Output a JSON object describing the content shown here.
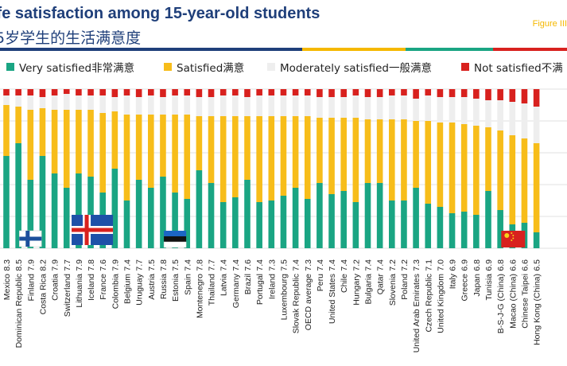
{
  "header": {
    "title_en": "ife satisfaction among 15-year-old students",
    "title_zh": "5岁学生的生活满意度",
    "figure_label": "Figure III"
  },
  "colors": {
    "very_satisfied": "#1aa583",
    "satisfied": "#f7bd1a",
    "moderately_satisfied": "#eeeeee",
    "not_satisfied": "#d8211e",
    "title": "#1f3f7a",
    "stripe_blue": "#1f3f7a",
    "stripe_yellow": "#f5b800",
    "stripe_green": "#1aa583",
    "stripe_red": "#d8211e"
  },
  "legend": [
    {
      "label": "Very satisfied非常满意",
      "color": "#1aa583"
    },
    {
      "label": "Satisfied满意",
      "color": "#f7bd1a"
    },
    {
      "label": "Moderately satisfied一般满意",
      "color": "#eeeeee"
    },
    {
      "label": "Not satisfied不满",
      "color": "#d8211e"
    }
  ],
  "chart_data": {
    "type": "bar",
    "stacked": true,
    "ylim": [
      0,
      100
    ],
    "grid": true,
    "legend_position": "top",
    "categories": [
      "Mexico",
      "Dominican Republic",
      "Finland",
      "Costa Rica",
      "Croatia",
      "Switzerland",
      "Lithuania",
      "Iceland",
      "France",
      "Colombia",
      "Belgium",
      "Uruguay",
      "Austria",
      "Russia",
      "Estonia",
      "Spain",
      "Montenegro",
      "Thailand",
      "Latvia",
      "Germany",
      "Brazil",
      "Portugal",
      "Ireland",
      "Luxembourg",
      "Slovak Republic",
      "OECD average",
      "Peru",
      "United States",
      "Chile",
      "Hungary",
      "Bulgaria",
      "Qatar",
      "Slovenia",
      "Poland",
      "United Arab Emirates",
      "Czech Republic",
      "United Kingdom",
      "Italy",
      "Greece",
      "Japan",
      "Tunisia",
      "B-S-J-G (China)",
      "Macao (China)",
      "Chinese Taipei",
      "Hong Kong (China)"
    ],
    "mean_scores": [
      "8.3",
      "8.5",
      "7.9",
      "8.2",
      "7.9",
      "7.7",
      "7.9",
      "7.8",
      "7.6",
      "7.9",
      "7.4",
      "7.7",
      "7.5",
      "7.8",
      "7.5",
      "7.4",
      "7.8",
      "7.7",
      "7.4",
      "7.4",
      "7.6",
      "7.4",
      "7.3",
      "7.5",
      "7.4",
      "7.3",
      "7.4",
      "7.4",
      "7.4",
      "7.2",
      "7.4",
      "7.4",
      "7.2",
      "7.2",
      "7.3",
      "7.1",
      "7.0",
      "6.9",
      "6.9",
      "6.8",
      "6.9",
      "6.8",
      "6.6",
      "6.6",
      "6.5"
    ],
    "series": [
      {
        "name": "Very satisfied非常满意",
        "values": [
          58,
          66,
          43,
          58,
          47,
          38,
          47,
          45,
          35,
          50,
          30,
          43,
          38,
          45,
          35,
          31,
          49,
          41,
          29,
          32,
          43,
          29,
          30,
          33,
          38,
          31,
          41,
          34,
          36,
          29,
          41,
          41,
          30,
          30,
          38,
          28,
          26,
          22,
          23,
          21,
          36,
          24,
          15,
          16,
          10
        ]
      },
      {
        "name": "Satisfied满意",
        "values": [
          32,
          23,
          44,
          30,
          40,
          49,
          40,
          42,
          50,
          36,
          54,
          41,
          46,
          39,
          49,
          53,
          34,
          42,
          54,
          51,
          40,
          54,
          53,
          50,
          45,
          52,
          41,
          48,
          46,
          53,
          40,
          40,
          51,
          51,
          42,
          52,
          53,
          57,
          55,
          56,
          40,
          50,
          56,
          53,
          56
        ]
      },
      {
        "name": "Moderately satisfied一般满意",
        "values": [
          6,
          7,
          9,
          7,
          9,
          10,
          9,
          9,
          11,
          9,
          12,
          11,
          12,
          11,
          12,
          12,
          12,
          12,
          13,
          13,
          12,
          13,
          13,
          13,
          13,
          13,
          13,
          13,
          13,
          14,
          14,
          14,
          15,
          15,
          14,
          16,
          16,
          16,
          17,
          17,
          17,
          19,
          21,
          22,
          23
        ]
      },
      {
        "name": "Not satisfied不满",
        "values": [
          4,
          4,
          4,
          5,
          4,
          3,
          4,
          4,
          4,
          5,
          4,
          5,
          4,
          5,
          4,
          4,
          5,
          5,
          4,
          4,
          5,
          4,
          4,
          4,
          4,
          4,
          5,
          5,
          5,
          4,
          5,
          5,
          4,
          4,
          6,
          4,
          5,
          5,
          5,
          6,
          7,
          7,
          8,
          9,
          11
        ]
      }
    ]
  }
}
